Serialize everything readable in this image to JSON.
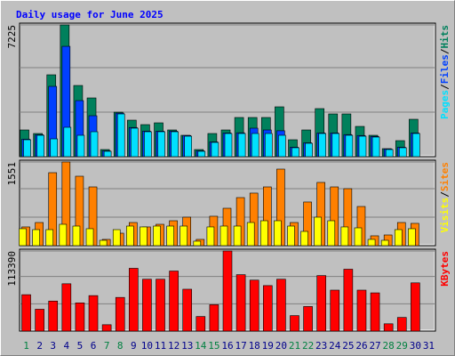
{
  "legend_separator": "/",
  "chart_data": [
    {
      "type": "bar",
      "title": "Daily usage for June 2025",
      "ylim": [
        0,
        7225
      ],
      "yticks": [
        7225
      ],
      "series": [
        {
          "name": "Hits",
          "color": "#00805c",
          "values": [
            1464,
            1269,
            4490,
            7225,
            3904,
            3221,
            390,
            2440,
            2001,
            1757,
            1854,
            1464,
            1171,
            390,
            1269,
            1464,
            2148,
            2148,
            2148,
            2733,
            927,
            1464,
            2635,
            2343,
            2343,
            1659,
            1171,
            439,
            878,
            2050,
            null
          ]
        },
        {
          "name": "Files",
          "color": "#0040ff",
          "values": [
            960,
            1200,
            3855,
            6051,
            3074,
            2245,
            320,
            2390,
            1600,
            1400,
            1400,
            1400,
            1160,
            320,
            810,
            1300,
            1310,
            1562,
            1464,
            1420,
            520,
            760,
            1300,
            1300,
            1210,
            1160,
            1110,
            420,
            520,
            1300,
            null
          ]
        },
        {
          "name": "Pages",
          "color": "#00e0ff",
          "values": [
            927,
            1171,
            976,
            1610,
            1171,
            1366,
            293,
            2342,
            1562,
            1366,
            1366,
            1366,
            1122,
            293,
            781,
            1269,
            1269,
            1269,
            1269,
            1171,
            488,
            732,
            1269,
            1269,
            1171,
            1122,
            1074,
            390,
            488,
            1269,
            null
          ]
        }
      ]
    },
    {
      "type": "bar",
      "ylim": [
        0,
        1551
      ],
      "yticks": [
        1551
      ],
      "series": [
        {
          "name": "Sites",
          "color": "#ff8000",
          "values": [
            347,
            429,
            1353,
            1551,
            1287,
            1089,
            116,
            231,
            429,
            347,
            396,
            462,
            528,
            116,
            545,
            693,
            891,
            974,
            1089,
            1419,
            429,
            809,
            1172,
            1089,
            1056,
            726,
            182,
            198,
            429,
            413,
            null
          ]
        },
        {
          "name": "Visits",
          "color": "#ffff00",
          "values": [
            314,
            297,
            297,
            396,
            363,
            314,
            99,
            297,
            363,
            347,
            363,
            363,
            363,
            83,
            347,
            363,
            363,
            429,
            462,
            462,
            363,
            264,
            528,
            462,
            347,
            330,
            116,
            99,
            297,
            314,
            null
          ]
        }
      ]
    },
    {
      "type": "bar",
      "ylim": [
        0,
        113390
      ],
      "yticks": [
        113390
      ],
      "categories": [
        "1",
        "2",
        "3",
        "4",
        "5",
        "6",
        "7",
        "8",
        "9",
        "10",
        "11",
        "12",
        "13",
        "14",
        "15",
        "16",
        "17",
        "18",
        "19",
        "20",
        "21",
        "22",
        "23",
        "24",
        "25",
        "26",
        "27",
        "28",
        "29",
        "30",
        "31"
      ],
      "category_colors": [
        "#008040",
        "#00008b",
        "#00008b",
        "#00008b",
        "#00008b",
        "#00008b",
        "#008040",
        "#008040",
        "#00008b",
        "#00008b",
        "#00008b",
        "#00008b",
        "#00008b",
        "#008040",
        "#008040",
        "#00008b",
        "#00008b",
        "#00008b",
        "#00008b",
        "#00008b",
        "#008040",
        "#008040",
        "#00008b",
        "#00008b",
        "#00008b",
        "#00008b",
        "#00008b",
        "#008040",
        "#008040",
        "#00008b",
        "#00008b"
      ],
      "series": [
        {
          "name": "KBytes",
          "color": "#ff0000",
          "values": [
            51520,
            30912,
            42504,
            66976,
            39928,
            50232,
            9016,
            47656,
            88872,
            73416,
            73416,
            85008,
            59248,
            20608,
            37352,
            113390,
            79856,
            72128,
            64400,
            73416,
            21896,
            34776,
            78568,
            57960,
            87584,
            57960,
            54096,
            10304,
            19320,
            68264,
            null
          ]
        }
      ]
    }
  ]
}
